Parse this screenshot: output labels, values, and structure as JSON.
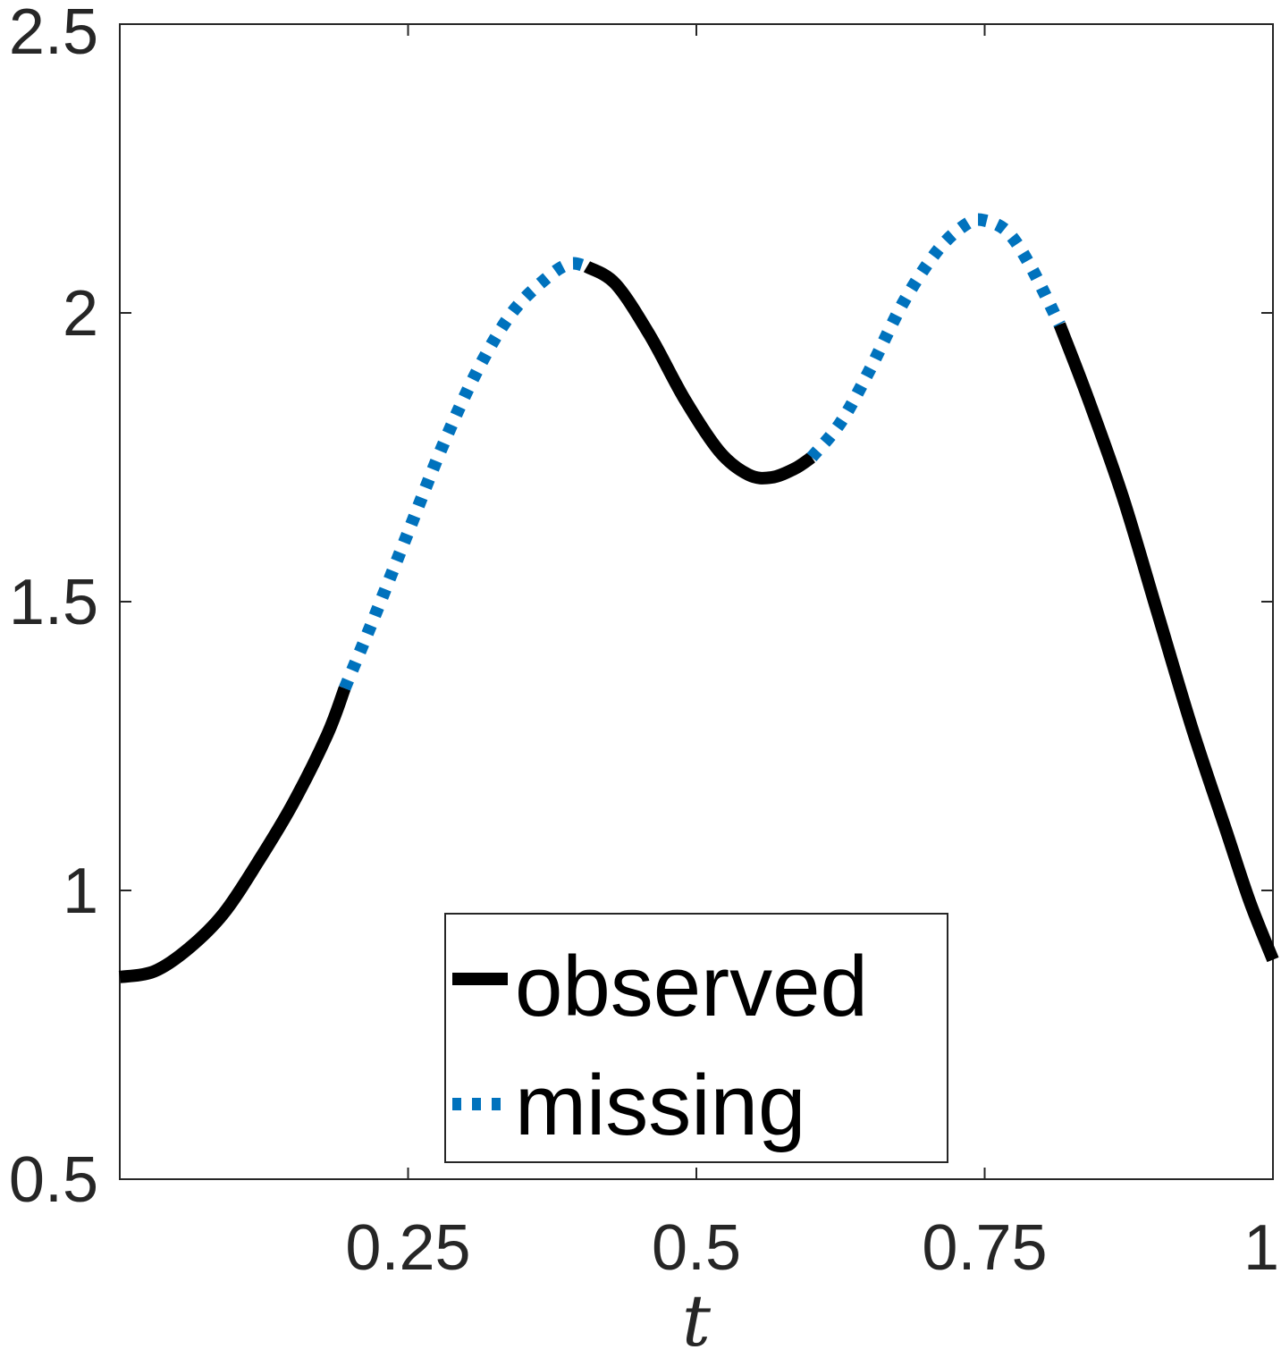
{
  "chart_data": {
    "type": "line",
    "title": "",
    "xlabel": "t",
    "ylabel": "",
    "xlim": [
      0,
      1
    ],
    "ylim": [
      0.5,
      2.5
    ],
    "x_ticks": [
      0.25,
      0.5,
      0.75,
      1
    ],
    "x_tick_labels": [
      "0.25",
      "0.5",
      "0.75",
      "1"
    ],
    "y_ticks": [
      0.5,
      1,
      1.5,
      2,
      2.5
    ],
    "y_tick_labels": [
      "0.5",
      "1",
      "1.5",
      "2",
      "2.5"
    ],
    "grid": false,
    "legend_position": "bottom-center",
    "colors": {
      "observed": "#000000",
      "missing": "#0072BD",
      "axes": "#262626"
    },
    "series": [
      {
        "name": "observed",
        "style": "solid",
        "segments": [
          [
            [
              0.0,
              0.85
            ],
            [
              0.03,
              0.86
            ],
            [
              0.06,
              0.9
            ],
            [
              0.09,
              0.96
            ],
            [
              0.12,
              1.05
            ],
            [
              0.15,
              1.15
            ],
            [
              0.18,
              1.27
            ],
            [
              0.195,
              1.35
            ]
          ],
          [
            [
              0.405,
              2.08
            ],
            [
              0.43,
              2.05
            ],
            [
              0.46,
              1.96
            ],
            [
              0.49,
              1.85
            ],
            [
              0.52,
              1.76
            ],
            [
              0.545,
              1.72
            ],
            [
              0.565,
              1.715
            ],
            [
              0.585,
              1.73
            ],
            [
              0.6,
              1.75
            ]
          ],
          [
            [
              0.815,
              1.98
            ],
            [
              0.84,
              1.85
            ],
            [
              0.87,
              1.68
            ],
            [
              0.9,
              1.48
            ],
            [
              0.93,
              1.28
            ],
            [
              0.96,
              1.1
            ],
            [
              0.98,
              0.98
            ],
            [
              1.0,
              0.88
            ]
          ]
        ]
      },
      {
        "name": "missing",
        "style": "dotted",
        "segments": [
          [
            [
              0.195,
              1.35
            ],
            [
              0.22,
              1.47
            ],
            [
              0.25,
              1.62
            ],
            [
              0.28,
              1.77
            ],
            [
              0.31,
              1.9
            ],
            [
              0.34,
              2.0
            ],
            [
              0.37,
              2.06
            ],
            [
              0.39,
              2.085
            ],
            [
              0.405,
              2.08
            ]
          ],
          [
            [
              0.6,
              1.75
            ],
            [
              0.625,
              1.81
            ],
            [
              0.65,
              1.9
            ],
            [
              0.68,
              2.02
            ],
            [
              0.71,
              2.11
            ],
            [
              0.735,
              2.155
            ],
            [
              0.75,
              2.16
            ],
            [
              0.77,
              2.14
            ],
            [
              0.79,
              2.08
            ],
            [
              0.815,
              1.98
            ]
          ]
        ]
      }
    ],
    "legend": [
      {
        "label": "observed",
        "series": "observed"
      },
      {
        "label": "missing",
        "series": "missing"
      }
    ]
  }
}
